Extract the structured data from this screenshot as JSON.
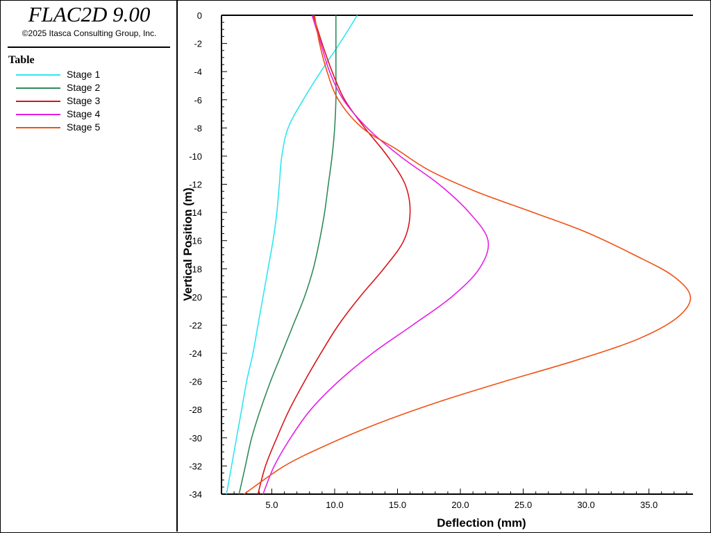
{
  "app": {
    "title": "FLAC2D 9.00",
    "copyright": "©2025 Itasca Consulting Group, Inc."
  },
  "legend": {
    "title": "Table",
    "items": [
      {
        "label": "Stage 1",
        "color": "#2ee6f0"
      },
      {
        "label": "Stage 2",
        "color": "#2e8b57"
      },
      {
        "label": "Stage 3",
        "color": "#d7141a"
      },
      {
        "label": "Stage 4",
        "color": "#e61ee6"
      },
      {
        "label": "Stage 5",
        "color": "#f05014"
      }
    ]
  },
  "chart_data": {
    "type": "line",
    "xlabel": "Deflection (mm)",
    "ylabel": "Vertical Position (m)",
    "xlim": [
      1.0,
      38.5
    ],
    "ylim": [
      -34,
      0
    ],
    "xticks": [
      "5.0",
      "10.0",
      "15.0",
      "20.0",
      "25.0",
      "30.0",
      "35.0"
    ],
    "yticks": [
      "0",
      "-2",
      "-4",
      "-6",
      "-8",
      "-10",
      "-12",
      "-14",
      "-16",
      "-18",
      "-20",
      "-22",
      "-24",
      "-26",
      "-28",
      "-30",
      "-32",
      "-34"
    ],
    "series": [
      {
        "name": "Stage 1",
        "color": "#2ee6f0",
        "points": [
          [
            11.8,
            0
          ],
          [
            10.4,
            -2
          ],
          [
            8.9,
            -4
          ],
          [
            7.5,
            -6
          ],
          [
            6.3,
            -8
          ],
          [
            5.8,
            -10
          ],
          [
            5.6,
            -12
          ],
          [
            5.4,
            -14
          ],
          [
            5.1,
            -16
          ],
          [
            4.7,
            -18
          ],
          [
            4.3,
            -20
          ],
          [
            3.9,
            -22
          ],
          [
            3.5,
            -24
          ],
          [
            3.0,
            -26
          ],
          [
            2.6,
            -28
          ],
          [
            2.2,
            -30
          ],
          [
            1.8,
            -32
          ],
          [
            1.4,
            -34
          ]
        ]
      },
      {
        "name": "Stage 2",
        "color": "#2e8b57",
        "points": [
          [
            10.1,
            0
          ],
          [
            10.1,
            -2
          ],
          [
            10.1,
            -4
          ],
          [
            10.1,
            -6
          ],
          [
            10.0,
            -8
          ],
          [
            9.8,
            -10
          ],
          [
            9.5,
            -12
          ],
          [
            9.2,
            -14
          ],
          [
            8.8,
            -16
          ],
          [
            8.3,
            -18
          ],
          [
            7.6,
            -20
          ],
          [
            6.7,
            -22
          ],
          [
            5.8,
            -24
          ],
          [
            4.9,
            -26
          ],
          [
            4.1,
            -28
          ],
          [
            3.4,
            -30
          ],
          [
            2.9,
            -32
          ],
          [
            2.4,
            -34
          ]
        ]
      },
      {
        "name": "Stage 3",
        "color": "#d7141a",
        "points": [
          [
            8.3,
            0
          ],
          [
            9.0,
            -2
          ],
          [
            9.8,
            -4
          ],
          [
            10.8,
            -6
          ],
          [
            12.4,
            -8
          ],
          [
            14.2,
            -10
          ],
          [
            15.6,
            -12
          ],
          [
            16.0,
            -14
          ],
          [
            15.5,
            -16
          ],
          [
            13.9,
            -18
          ],
          [
            12.0,
            -20
          ],
          [
            10.3,
            -22
          ],
          [
            8.9,
            -24
          ],
          [
            7.6,
            -26
          ],
          [
            6.4,
            -28
          ],
          [
            5.4,
            -30
          ],
          [
            4.5,
            -32
          ],
          [
            3.9,
            -34
          ]
        ]
      },
      {
        "name": "Stage 4",
        "color": "#e61ee6",
        "points": [
          [
            8.2,
            0
          ],
          [
            8.9,
            -2
          ],
          [
            9.6,
            -4
          ],
          [
            10.7,
            -6
          ],
          [
            12.6,
            -8
          ],
          [
            15.2,
            -10
          ],
          [
            18.3,
            -12
          ],
          [
            20.7,
            -14
          ],
          [
            22.2,
            -16
          ],
          [
            21.5,
            -18
          ],
          [
            19.3,
            -20
          ],
          [
            16.2,
            -22
          ],
          [
            13.0,
            -24
          ],
          [
            10.3,
            -26
          ],
          [
            8.1,
            -28
          ],
          [
            6.5,
            -30
          ],
          [
            5.2,
            -32
          ],
          [
            4.3,
            -34
          ]
        ]
      },
      {
        "name": "Stage 5",
        "color": "#f05014",
        "points": [
          [
            8.4,
            0
          ],
          [
            8.8,
            -2
          ],
          [
            9.4,
            -4
          ],
          [
            10.3,
            -6
          ],
          [
            12.2,
            -8
          ],
          [
            14.9,
            -9.5
          ],
          [
            17.5,
            -11
          ],
          [
            21.2,
            -12.5
          ],
          [
            25.8,
            -14
          ],
          [
            30.0,
            -15.4
          ],
          [
            33.8,
            -17
          ],
          [
            36.9,
            -18.5
          ],
          [
            38.3,
            -20
          ],
          [
            37.2,
            -21.5
          ],
          [
            34.1,
            -23
          ],
          [
            29.2,
            -24.5
          ],
          [
            23.5,
            -26
          ],
          [
            18.1,
            -27.5
          ],
          [
            13.4,
            -29
          ],
          [
            9.4,
            -30.5
          ],
          [
            6.0,
            -32
          ],
          [
            2.8,
            -34
          ]
        ]
      }
    ]
  }
}
